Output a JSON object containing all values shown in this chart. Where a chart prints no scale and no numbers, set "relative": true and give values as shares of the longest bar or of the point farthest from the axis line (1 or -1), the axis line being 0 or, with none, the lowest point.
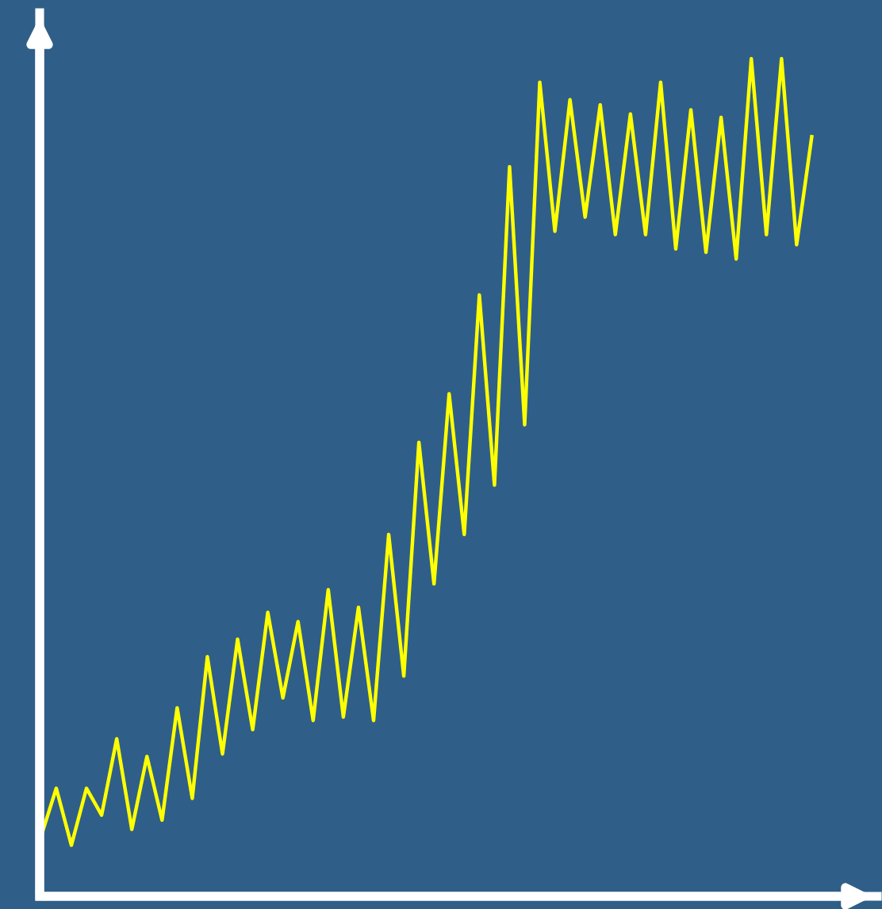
{
  "chart_data": {
    "type": "line",
    "relative": true,
    "categories": [
      null,
      null,
      null,
      null,
      null,
      null,
      null,
      null,
      null,
      null,
      null,
      null,
      null,
      null,
      null,
      null,
      null,
      null,
      null,
      null,
      null,
      null,
      null,
      null,
      null,
      null,
      null,
      null,
      null,
      null,
      null,
      null,
      null,
      null,
      null,
      null,
      null,
      null,
      null,
      null,
      null,
      null,
      null,
      null,
      null,
      null,
      null,
      null,
      null,
      null,
      null,
      null
    ],
    "series": [
      {
        "color": "#ffff00",
        "values": [
          0.072,
          0.129,
          0.061,
          0.129,
          0.097,
          0.188,
          0.08,
          0.167,
          0.091,
          0.225,
          0.117,
          0.286,
          0.17,
          0.307,
          0.199,
          0.339,
          0.237,
          0.328,
          0.21,
          0.366,
          0.214,
          0.345,
          0.21,
          0.432,
          0.263,
          0.542,
          0.373,
          0.6,
          0.432,
          0.718,
          0.491,
          0.871,
          0.563,
          0.972,
          0.794,
          0.951,
          0.811,
          0.945,
          0.79,
          0.934,
          0.79,
          0.972,
          0.773,
          0.939,
          0.769,
          0.93,
          0.761,
          1,
          0.79,
          1,
          0.778,
          0.907
        ]
      }
    ],
    "marker": "none",
    "line_style": "solid"
  }
}
